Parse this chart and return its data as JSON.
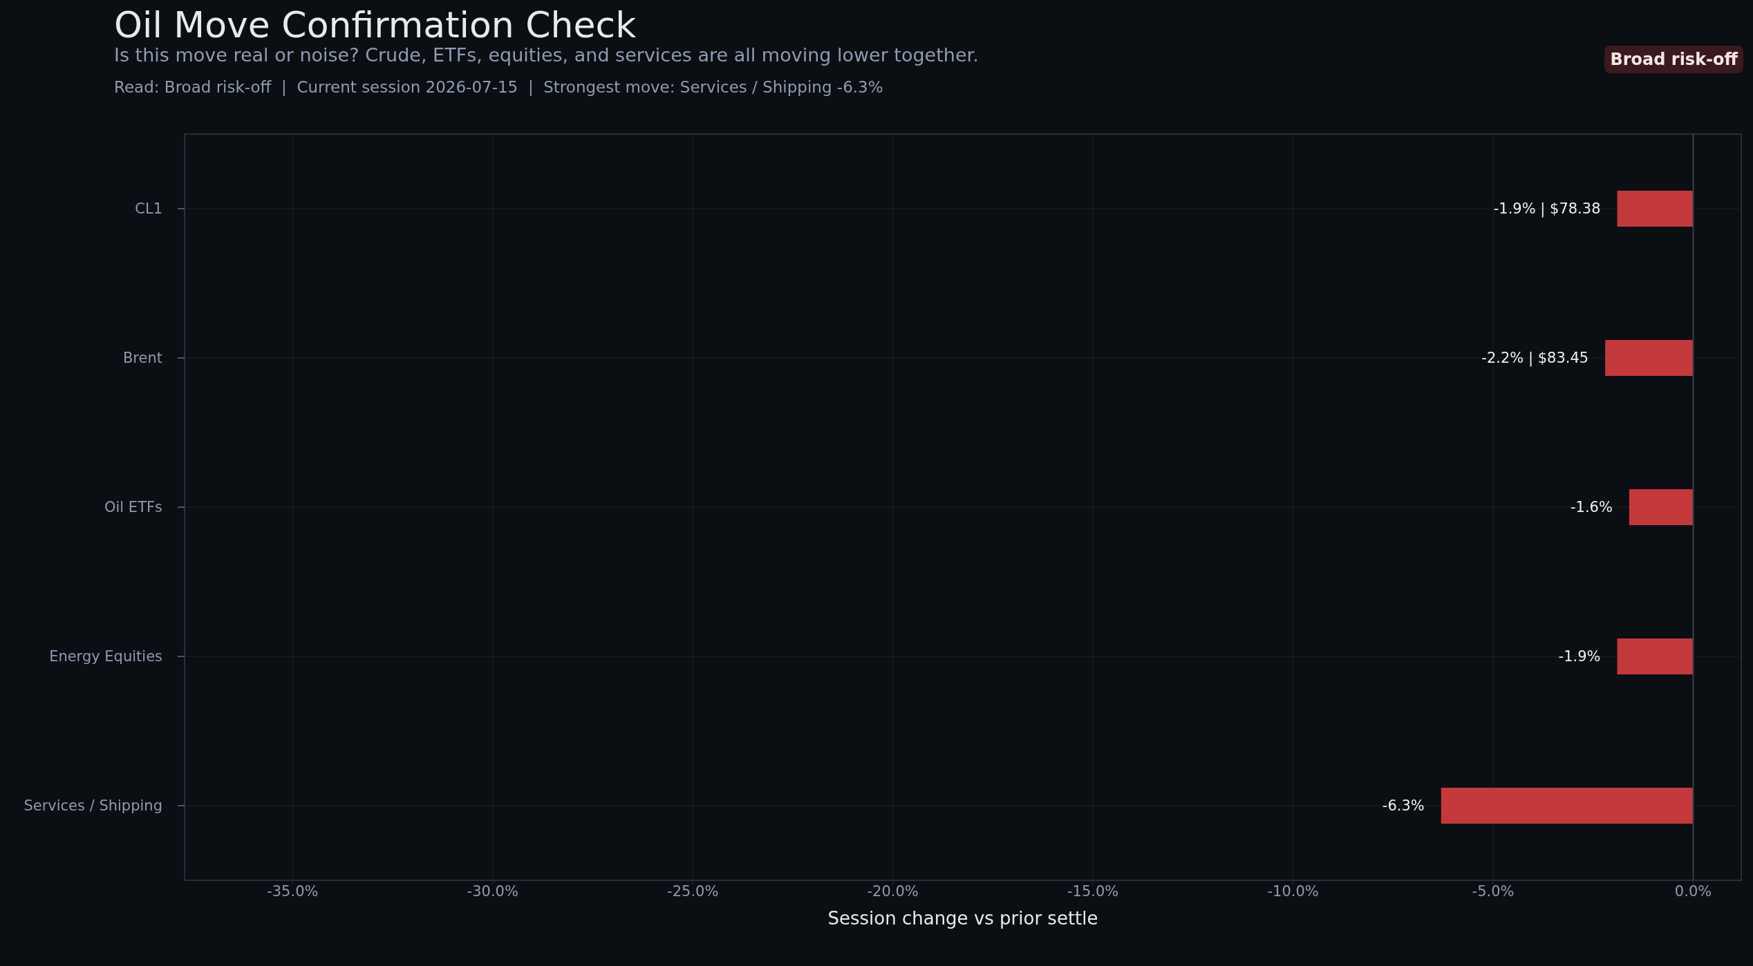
{
  "chart_data": {
    "type": "bar",
    "orientation": "horizontal",
    "title": "Oil Move Confirmation Check",
    "subtitle": "Is this move real or noise? Crude, ETFs, equities, and services are all moving lower together.",
    "annotations": [
      "Read: Broad risk-off  |  Current session 2026-07-15  |  Strongest move: Services / Shipping -6.3%",
      "Broad risk-off"
    ],
    "xlabel": "Session change vs prior settle",
    "categories": [
      "CL1",
      "Brent",
      "Oil ETFs",
      "Energy Equities",
      "Services / Shipping"
    ],
    "values": [
      -1.9,
      -2.2,
      -1.6,
      -1.9,
      -6.3
    ],
    "value_labels": [
      "-1.9% | $78.38",
      "-2.2% | $83.45",
      "-1.6%",
      "-1.9%",
      "-6.3%"
    ],
    "color": "#c4393c",
    "xlim": [
      -37.7,
      1.2
    ],
    "xticks": [
      {
        "value": -35,
        "label": "-35.0%"
      },
      {
        "value": -30,
        "label": "-30.0%"
      },
      {
        "value": -25,
        "label": "-25.0%"
      },
      {
        "value": -20,
        "label": "-20.0%"
      },
      {
        "value": -15,
        "label": "-15.0%"
      },
      {
        "value": -10,
        "label": "-10.0%"
      },
      {
        "value": -5,
        "label": "-5.0%"
      },
      {
        "value": 0,
        "label": "0.0%"
      }
    ],
    "ref_lines": [
      {
        "axis": "x",
        "value": 0,
        "color": "#3b4049"
      }
    ],
    "grid": true
  }
}
